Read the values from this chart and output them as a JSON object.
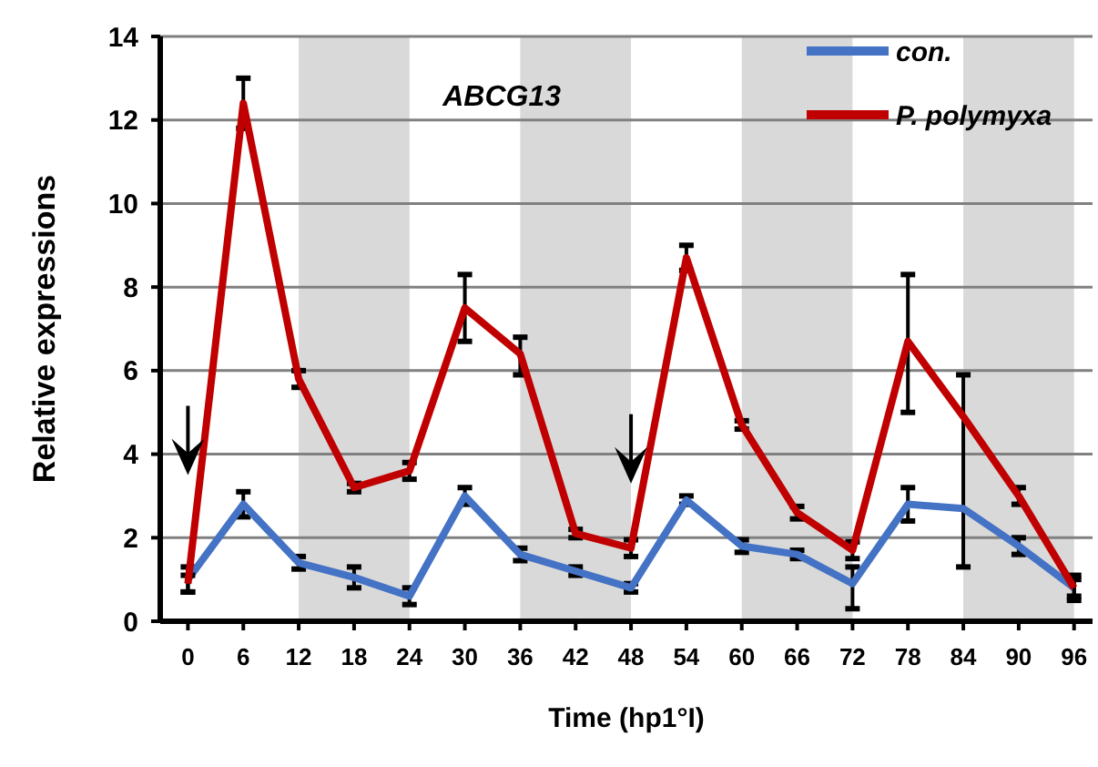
{
  "chart_data": {
    "type": "line",
    "xlabel": "Time (hp1°I)",
    "ylabel": "Relative expressions",
    "annotations": [
      "ABCG13"
    ],
    "x": [
      0,
      6,
      12,
      18,
      24,
      30,
      36,
      42,
      48,
      54,
      60,
      66,
      72,
      78,
      84,
      90,
      96
    ],
    "series": [
      {
        "name": "con.",
        "color": "#4472c4",
        "values": [
          1.0,
          2.8,
          1.4,
          1.05,
          0.6,
          3.0,
          1.6,
          1.2,
          0.8,
          2.9,
          1.8,
          1.6,
          0.9,
          2.8,
          2.7,
          1.8,
          0.8
        ],
        "errors": [
          0.3,
          0.3,
          0.15,
          0.25,
          0.2,
          0.2,
          0.15,
          0.1,
          0.1,
          0.1,
          0.15,
          0.1,
          [
            0.3,
            1.3
          ],
          [
            2.4,
            3.2
          ],
          [
            1.3,
            5.9
          ],
          0.2,
          0.3
        ]
      },
      {
        "name": "P. polymyxa",
        "color": "#c00000",
        "values": [
          0.9,
          12.4,
          5.8,
          3.2,
          3.6,
          7.5,
          6.4,
          2.1,
          1.75,
          8.7,
          4.7,
          2.6,
          1.7,
          6.7,
          4.9,
          3.0,
          0.8
        ],
        "errors": [
          0.2,
          0.6,
          0.2,
          0.1,
          0.2,
          [
            6.7,
            8.3
          ],
          [
            5.9,
            6.8
          ],
          0.1,
          0.2,
          0.3,
          0.1,
          0.15,
          0.2,
          [
            5.0,
            8.3
          ],
          null,
          0.2,
          0.2
        ]
      }
    ],
    "xlim": [
      -3,
      98
    ],
    "xticks": [
      0,
      6,
      12,
      18,
      24,
      30,
      36,
      42,
      48,
      54,
      60,
      66,
      72,
      78,
      84,
      90,
      96
    ],
    "ylim": [
      0,
      14
    ],
    "yticks": [
      0,
      2,
      4,
      6,
      8,
      10,
      12,
      14
    ],
    "bands": [
      {
        "axis": "x",
        "from": 12,
        "to": 24,
        "color": "#d9d9d9"
      },
      {
        "axis": "x",
        "from": 36,
        "to": 48,
        "color": "#d9d9d9"
      },
      {
        "axis": "x",
        "from": 60,
        "to": 72,
        "color": "#d9d9d9"
      },
      {
        "axis": "x",
        "from": 84,
        "to": 96,
        "color": "#d9d9d9"
      }
    ],
    "grid": "y",
    "legend": "top right",
    "marker": "none",
    "line_style": "solid"
  }
}
